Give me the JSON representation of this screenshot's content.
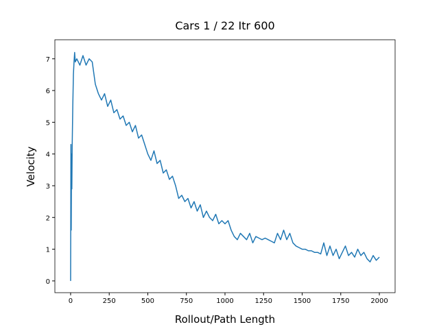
{
  "chart_data": {
    "type": "line",
    "title": "Cars 1 / 22 Itr 600",
    "x_label": "Rollout/Path Length",
    "y_label": "Velocity",
    "xlim": [
      -102,
      2102
    ],
    "ylim": [
      -0.37,
      7.6
    ],
    "xticks": [
      0,
      250,
      500,
      750,
      1000,
      1250,
      1500,
      1750,
      2000
    ],
    "yticks": [
      0,
      1,
      2,
      3,
      4,
      5,
      6,
      7
    ],
    "x": [
      0,
      2,
      4,
      6,
      8,
      10,
      14,
      18,
      22,
      26,
      30,
      40,
      60,
      80,
      100,
      120,
      140,
      160,
      180,
      200,
      220,
      240,
      260,
      280,
      300,
      320,
      340,
      360,
      380,
      400,
      420,
      440,
      460,
      480,
      500,
      520,
      540,
      560,
      580,
      600,
      620,
      640,
      660,
      680,
      700,
      720,
      740,
      760,
      780,
      800,
      820,
      840,
      860,
      880,
      900,
      920,
      940,
      960,
      980,
      1000,
      1020,
      1040,
      1060,
      1080,
      1100,
      1120,
      1140,
      1160,
      1180,
      1200,
      1220,
      1240,
      1260,
      1280,
      1300,
      1320,
      1340,
      1360,
      1380,
      1400,
      1420,
      1440,
      1460,
      1480,
      1500,
      1520,
      1540,
      1560,
      1580,
      1600,
      1620,
      1640,
      1660,
      1680,
      1700,
      1720,
      1740,
      1760,
      1780,
      1800,
      1820,
      1840,
      1860,
      1880,
      1900,
      1920,
      1940,
      1960,
      1980,
      2000
    ],
    "series": [
      {
        "color": "#1f77b4",
        "values": [
          0,
          4.3,
          1.6,
          4.0,
          2.9,
          4.2,
          5.5,
          6.5,
          6.9,
          7.2,
          6.9,
          7.0,
          6.8,
          7.1,
          6.8,
          7.0,
          6.9,
          6.2,
          5.9,
          5.7,
          5.9,
          5.5,
          5.7,
          5.3,
          5.4,
          5.1,
          5.2,
          4.9,
          5.0,
          4.7,
          4.9,
          4.5,
          4.6,
          4.3,
          4.0,
          3.8,
          4.1,
          3.7,
          3.8,
          3.4,
          3.5,
          3.2,
          3.3,
          3.0,
          2.6,
          2.7,
          2.5,
          2.6,
          2.3,
          2.5,
          2.2,
          2.4,
          2.0,
          2.2,
          2.0,
          1.9,
          2.1,
          1.8,
          1.9,
          1.8,
          1.9,
          1.6,
          1.4,
          1.3,
          1.5,
          1.4,
          1.3,
          1.5,
          1.2,
          1.4,
          1.35,
          1.3,
          1.35,
          1.3,
          1.25,
          1.2,
          1.5,
          1.3,
          1.6,
          1.3,
          1.5,
          1.2,
          1.1,
          1.05,
          1.0,
          1.0,
          0.95,
          0.95,
          0.9,
          0.9,
          0.85,
          1.2,
          0.8,
          1.1,
          0.8,
          1.0,
          0.7,
          0.9,
          1.1,
          0.8,
          0.9,
          0.75,
          1.0,
          0.8,
          0.9,
          0.7,
          0.6,
          0.8,
          0.65,
          0.75
        ]
      }
    ]
  }
}
